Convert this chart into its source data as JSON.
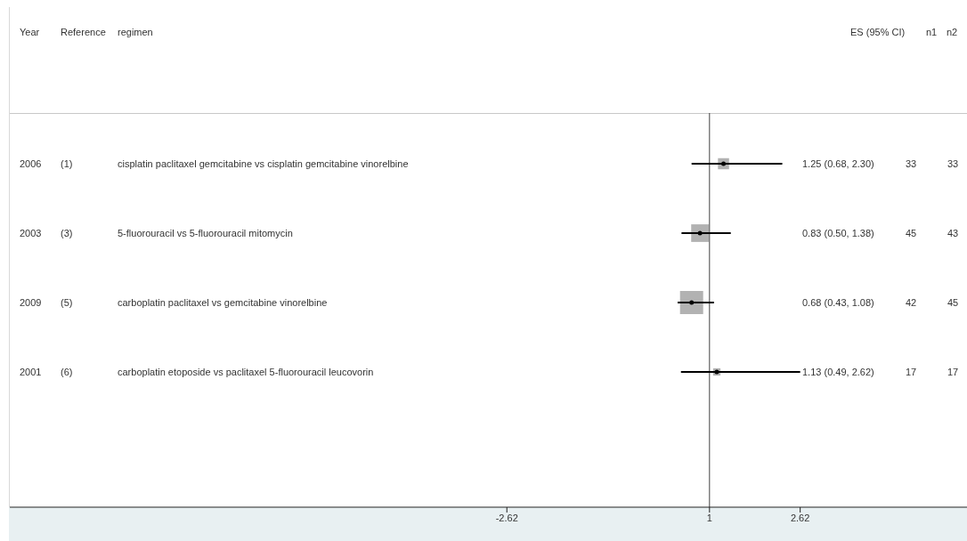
{
  "chart_data": {
    "type": "scatter",
    "orientation": "horizontal",
    "marker": "square",
    "categories": [
      "cisplatin paclitaxel gemcitabine vs cisplatin gemcitabine vinorelbine",
      "5-fluorouracil vs 5-fluorouracil mitomycin",
      "carboplatin paclitaxel vs gemcitabine vinorelbine",
      "carboplatin etoposide vs paclitaxel 5-fluorouracil leucovorin"
    ],
    "values": [
      1.25,
      0.83,
      0.68,
      1.13
    ],
    "errors": [
      [
        0.68,
        2.3
      ],
      [
        0.5,
        1.38
      ],
      [
        0.43,
        1.08
      ],
      [
        0.49,
        2.62
      ]
    ],
    "sizes": [
      0.23,
      0.58,
      1,
      0.1
    ],
    "color": "#000000",
    "xlim": [
      -11.5,
      5.6
    ],
    "xticks": [
      -2.62,
      1,
      2.62
    ],
    "ref_lines": [
      {
        "axis": "x",
        "value": 1,
        "color": "#404040"
      }
    ],
    "annotations": [
      "Year",
      "Reference",
      "regimen",
      "ES (95% CI)",
      "n1",
      "n2",
      "2006",
      "(1)",
      "1.25 (0.68, 2.30)",
      "33",
      "33",
      "2003",
      "(3)",
      "0.83 (0.50, 1.38)",
      "45",
      "43",
      "2009",
      "(5)",
      "0.68 (0.43, 1.08)",
      "42",
      "45",
      "2001",
      "(6)",
      "1.13 (0.49, 2.62)",
      "17",
      "17"
    ]
  }
}
